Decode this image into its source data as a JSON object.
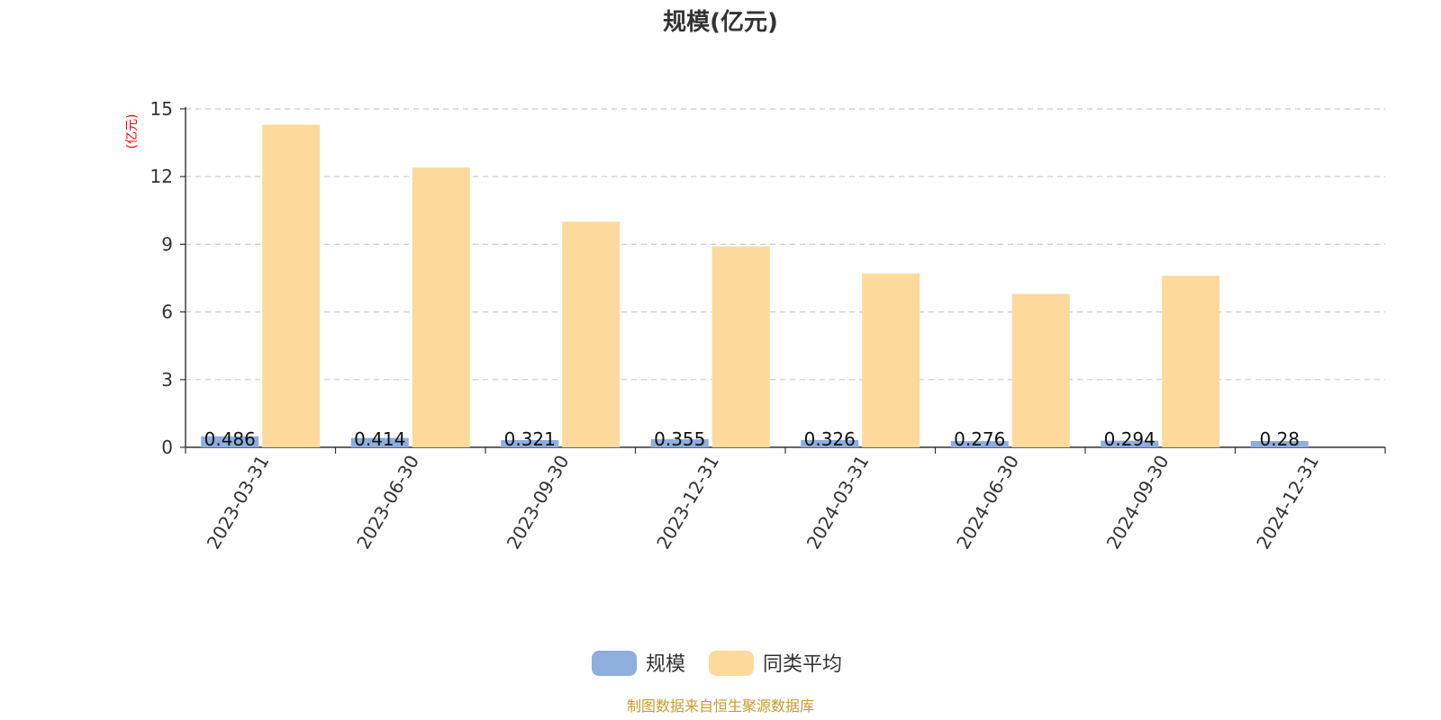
{
  "chart_data": {
    "type": "bar",
    "title": "规模(亿元)",
    "ylabel": "(亿元)",
    "xlabel": "",
    "ylim": [
      0,
      15
    ],
    "yticks": [
      0,
      3,
      6,
      9,
      12,
      15
    ],
    "grid": true,
    "legend_position": "bottom",
    "categories": [
      "2023-03-31",
      "2023-06-30",
      "2023-09-30",
      "2023-12-31",
      "2024-03-31",
      "2024-06-30",
      "2024-09-30",
      "2024-12-31"
    ],
    "series": [
      {
        "name": "规模",
        "color": "#8eaedb",
        "values": [
          0.486,
          0.414,
          0.321,
          0.355,
          0.326,
          0.276,
          0.294,
          0.28
        ],
        "labels": [
          "0.486",
          "0.414",
          "0.321",
          "0.355",
          "0.326",
          "0.276",
          "0.294",
          "0.28"
        ]
      },
      {
        "name": "同类平均",
        "color": "#fdd99b",
        "values": [
          14.3,
          12.4,
          10.0,
          8.9,
          7.7,
          6.8,
          7.6,
          null
        ]
      }
    ],
    "source": "制图数据来自恒生聚源数据库"
  }
}
